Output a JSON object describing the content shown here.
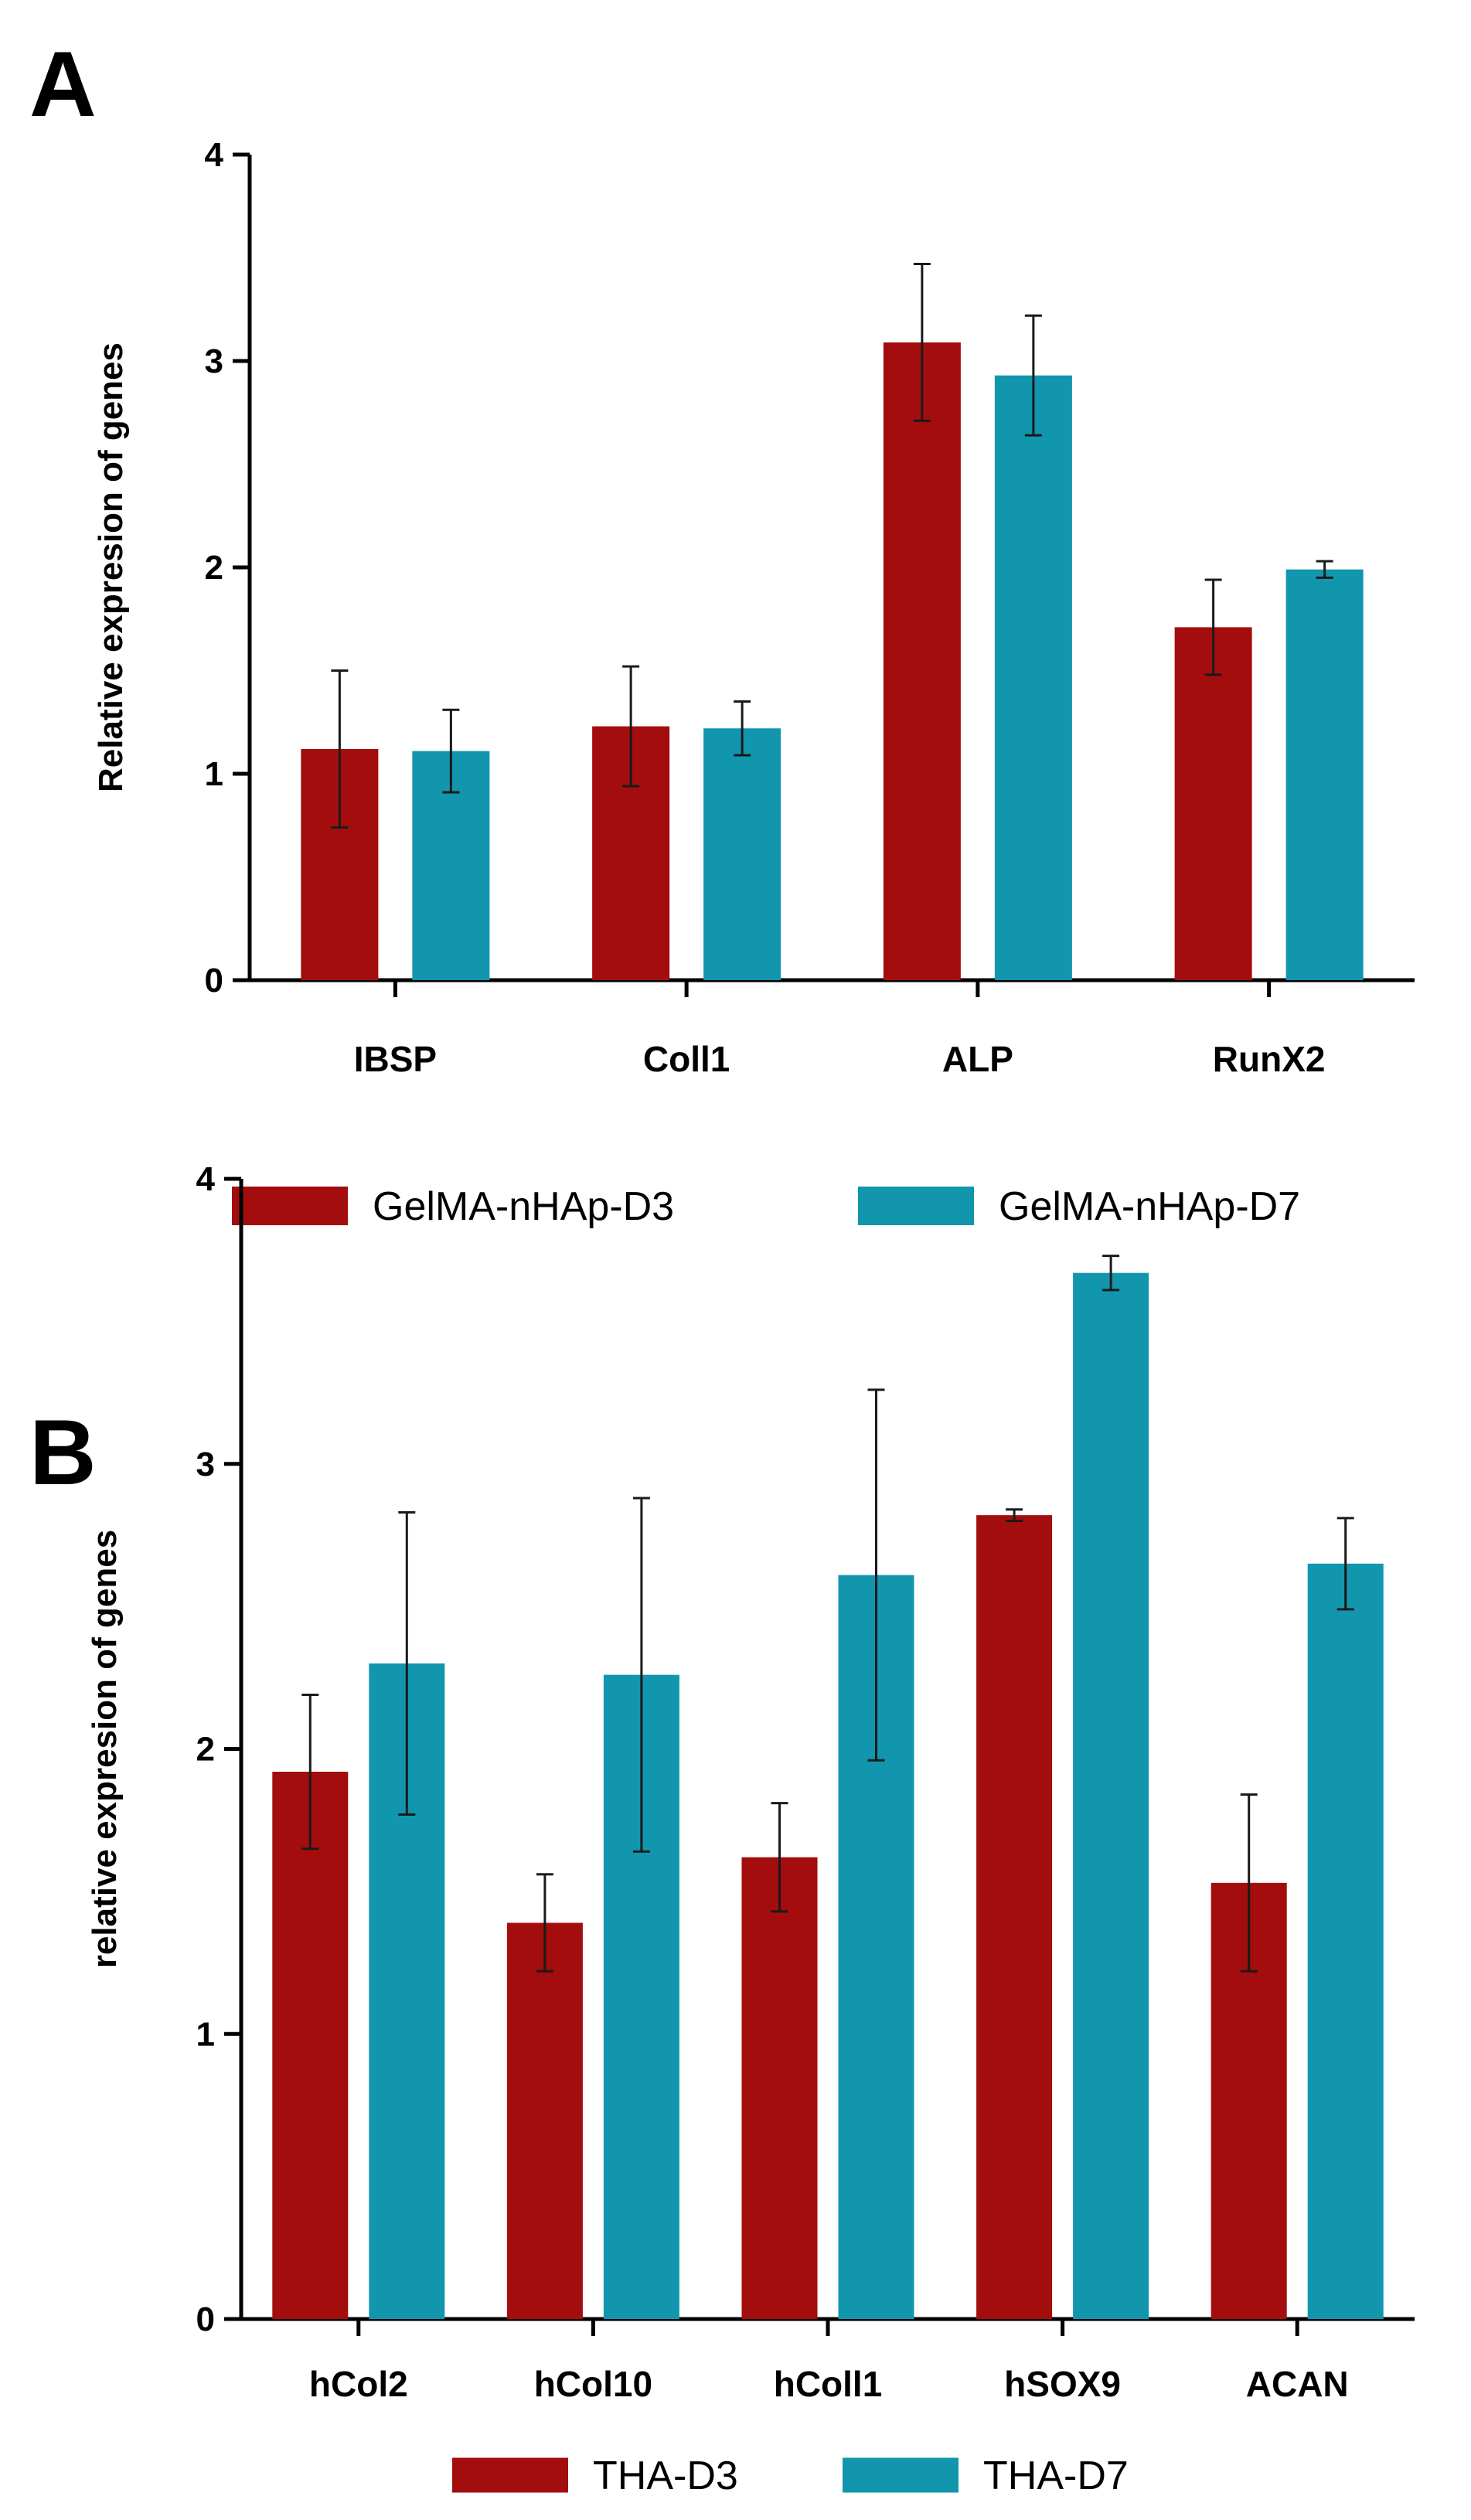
{
  "figure": {
    "panels": [
      "A",
      "B"
    ]
  },
  "colors": {
    "series_1": "#a30d0d",
    "series_2": "#1196ae",
    "axis": "#000000"
  },
  "chart_data": [
    {
      "type": "bar",
      "panel": "A",
      "ylabel": "Relative expresion of genes",
      "xlabel": "",
      "ylim": [
        0,
        4
      ],
      "yticks": [
        0,
        1,
        2,
        3,
        4
      ],
      "categories": [
        "IBSP",
        "Coll1",
        "ALP",
        "RunX2"
      ],
      "series": [
        {
          "name": "GelMA-nHAp-D3",
          "values": [
            1.12,
            1.23,
            3.09,
            1.71
          ],
          "errors": [
            0.38,
            0.29,
            0.38,
            0.23
          ]
        },
        {
          "name": "GelMA-nHAp-D7",
          "values": [
            1.11,
            1.22,
            2.93,
            1.99
          ],
          "errors": [
            0.2,
            0.13,
            0.29,
            0.04
          ]
        }
      ],
      "legend_position": "bottom",
      "grid": false,
      "error_bars": true
    },
    {
      "type": "bar",
      "panel": "B",
      "ylabel": "relative expresion of genes",
      "xlabel": "",
      "ylim": [
        0,
        4
      ],
      "yticks": [
        0,
        1,
        2,
        3,
        4
      ],
      "categories": [
        "hCol2",
        "hCol10",
        "hColl1",
        "hSOX9",
        "ACAN"
      ],
      "series": [
        {
          "name": "THA-D3",
          "values": [
            1.92,
            1.39,
            1.62,
            2.82,
            1.53
          ],
          "errors": [
            0.27,
            0.17,
            0.19,
            0.02,
            0.31
          ]
        },
        {
          "name": "THA-D7",
          "values": [
            2.3,
            2.26,
            2.61,
            3.67,
            2.65
          ],
          "errors": [
            0.53,
            0.62,
            0.65,
            0.06,
            0.16
          ]
        }
      ],
      "legend_position": "bottom",
      "grid": false,
      "error_bars": true
    }
  ]
}
